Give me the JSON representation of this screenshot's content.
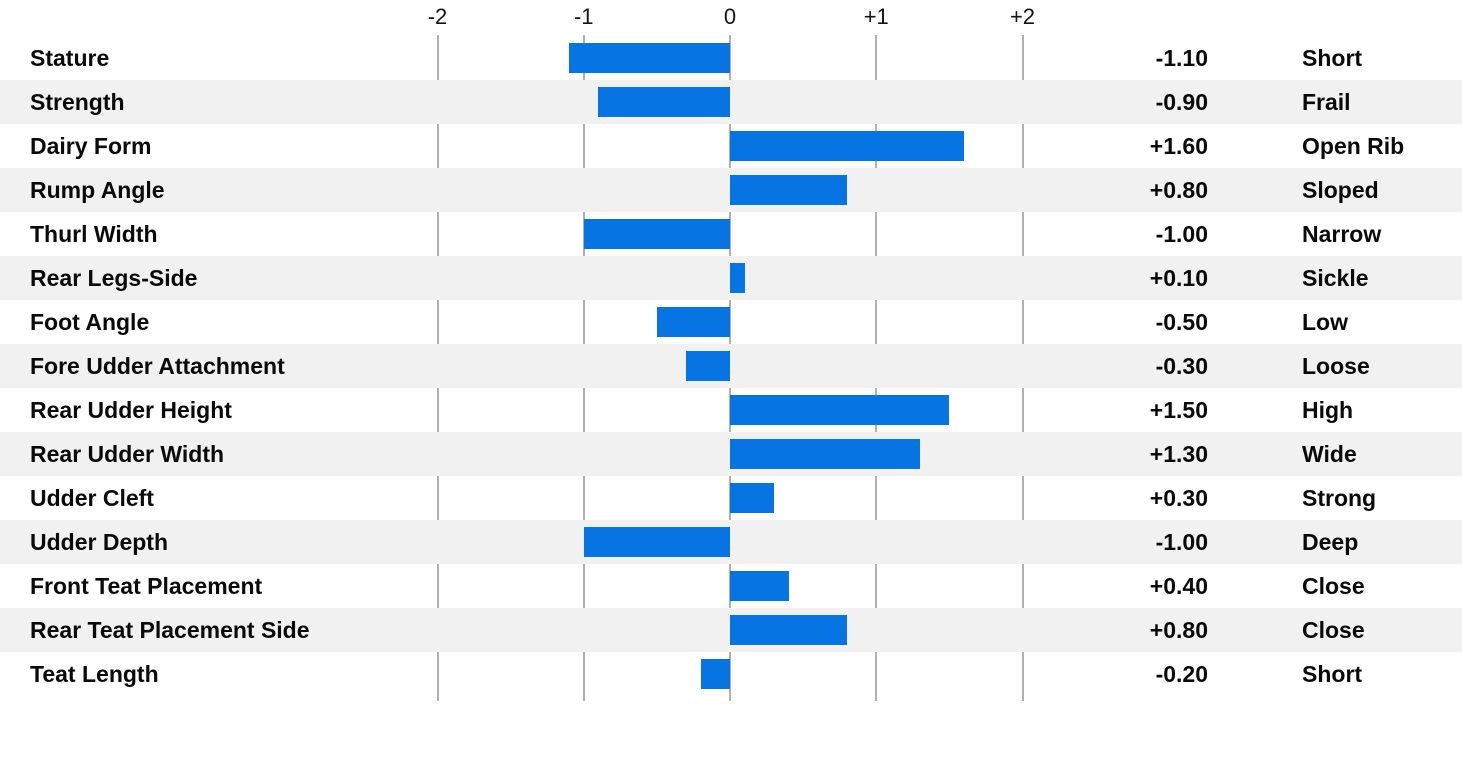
{
  "chart_data": {
    "type": "bar",
    "orientation": "horizontal",
    "xlim": [
      -2,
      2
    ],
    "grid": true,
    "colors": {
      "bar": "#0774e3",
      "stripe": "#f1f1f2",
      "gridline": "#b0b0b0",
      "text": "#0a0a0a"
    },
    "axis_ticks": [
      {
        "label": "-2",
        "value": -2
      },
      {
        "label": "-1",
        "value": -1
      },
      {
        "label": "0",
        "value": 0
      },
      {
        "label": "+1",
        "value": 1
      },
      {
        "label": "+2",
        "value": 2
      }
    ],
    "rows": [
      {
        "trait": "Stature",
        "value": -1.1,
        "value_label": "-1.10",
        "descriptor": "Short"
      },
      {
        "trait": "Strength",
        "value": -0.9,
        "value_label": "-0.90",
        "descriptor": "Frail"
      },
      {
        "trait": "Dairy Form",
        "value": 1.6,
        "value_label": "+1.60",
        "descriptor": "Open Rib"
      },
      {
        "trait": "Rump Angle",
        "value": 0.8,
        "value_label": "+0.80",
        "descriptor": "Sloped"
      },
      {
        "trait": "Thurl Width",
        "value": -1.0,
        "value_label": "-1.00",
        "descriptor": "Narrow"
      },
      {
        "trait": "Rear Legs-Side",
        "value": 0.1,
        "value_label": "+0.10",
        "descriptor": "Sickle"
      },
      {
        "trait": "Foot Angle",
        "value": -0.5,
        "value_label": "-0.50",
        "descriptor": "Low"
      },
      {
        "trait": "Fore Udder Attachment",
        "value": -0.3,
        "value_label": "-0.30",
        "descriptor": "Loose"
      },
      {
        "trait": "Rear Udder Height",
        "value": 1.5,
        "value_label": "+1.50",
        "descriptor": "High"
      },
      {
        "trait": "Rear Udder Width",
        "value": 1.3,
        "value_label": "+1.30",
        "descriptor": "Wide"
      },
      {
        "trait": "Udder Cleft",
        "value": 0.3,
        "value_label": "+0.30",
        "descriptor": "Strong"
      },
      {
        "trait": "Udder Depth",
        "value": -1.0,
        "value_label": "-1.00",
        "descriptor": "Deep"
      },
      {
        "trait": "Front Teat Placement",
        "value": 0.4,
        "value_label": "+0.40",
        "descriptor": "Close"
      },
      {
        "trait": "Rear Teat Placement Side",
        "value": 0.8,
        "value_label": "+0.80",
        "descriptor": "Close"
      },
      {
        "trait": "Teat Length",
        "value": -0.2,
        "value_label": "-0.20",
        "descriptor": "Short"
      }
    ]
  }
}
